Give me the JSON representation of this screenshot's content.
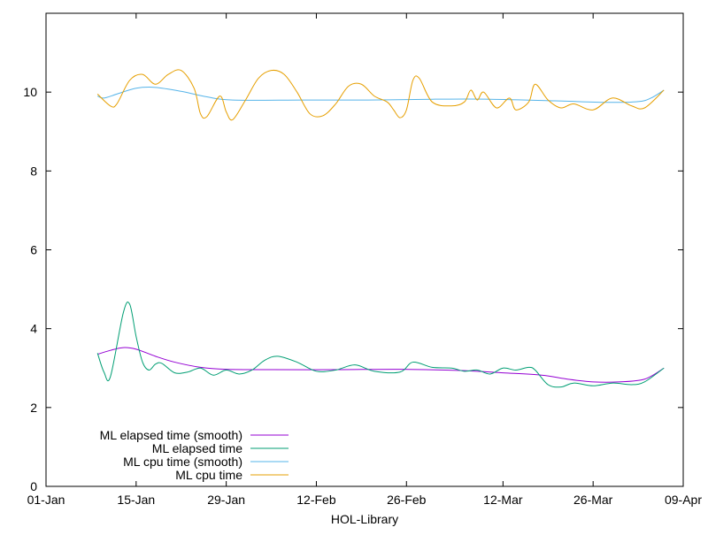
{
  "chart_data": {
    "type": "line",
    "title": "",
    "xlabel": "HOL-Library",
    "ylabel": "",
    "xlim": [
      "2024-01-01",
      "2024-04-09"
    ],
    "ylim": [
      0,
      12
    ],
    "x_ticks": [
      {
        "date": "2024-01-01",
        "label": "01-Jan"
      },
      {
        "date": "2024-01-15",
        "label": "15-Jan"
      },
      {
        "date": "2024-01-29",
        "label": "29-Jan"
      },
      {
        "date": "2024-02-12",
        "label": "12-Feb"
      },
      {
        "date": "2024-02-26",
        "label": "26-Feb"
      },
      {
        "date": "2024-03-12",
        "label": "12-Mar"
      },
      {
        "date": "2024-03-26",
        "label": "26-Mar"
      },
      {
        "date": "2024-04-09",
        "label": "09-Apr"
      }
    ],
    "y_ticks": [
      0,
      2,
      4,
      6,
      8,
      10
    ],
    "grid": false,
    "legend_position": "bottom-left",
    "series": [
      {
        "name": "ML elapsed time (smooth)",
        "color": "#9400d3",
        "points": [
          [
            "2024-01-09",
            3.35
          ],
          [
            "2024-01-11",
            3.45
          ],
          [
            "2024-01-13",
            3.52
          ],
          [
            "2024-01-15",
            3.48
          ],
          [
            "2024-01-18",
            3.3
          ],
          [
            "2024-01-21",
            3.15
          ],
          [
            "2024-01-25",
            3.02
          ],
          [
            "2024-01-29",
            2.97
          ],
          [
            "2024-02-05",
            2.96
          ],
          [
            "2024-02-15",
            2.96
          ],
          [
            "2024-02-25",
            2.97
          ],
          [
            "2024-03-05",
            2.94
          ],
          [
            "2024-03-12",
            2.88
          ],
          [
            "2024-03-18",
            2.82
          ],
          [
            "2024-03-22",
            2.72
          ],
          [
            "2024-03-26",
            2.65
          ],
          [
            "2024-03-30",
            2.65
          ],
          [
            "2024-04-03",
            2.72
          ],
          [
            "2024-04-06",
            3.0
          ]
        ]
      },
      {
        "name": "ML elapsed time",
        "color": "#009e73",
        "points": [
          [
            "2024-01-09",
            3.38
          ],
          [
            "2024-01-10",
            2.9
          ],
          [
            "2024-01-11",
            2.78
          ],
          [
            "2024-01-13",
            4.4
          ],
          [
            "2024-01-14",
            4.62
          ],
          [
            "2024-01-15",
            3.8
          ],
          [
            "2024-01-16",
            3.15
          ],
          [
            "2024-01-17",
            2.95
          ],
          [
            "2024-01-18",
            3.1
          ],
          [
            "2024-01-19",
            3.12
          ],
          [
            "2024-01-21",
            2.88
          ],
          [
            "2024-01-23",
            2.9
          ],
          [
            "2024-01-25",
            3.0
          ],
          [
            "2024-01-27",
            2.82
          ],
          [
            "2024-01-29",
            2.95
          ],
          [
            "2024-01-31",
            2.85
          ],
          [
            "2024-02-02",
            2.95
          ],
          [
            "2024-02-04",
            3.2
          ],
          [
            "2024-02-06",
            3.3
          ],
          [
            "2024-02-09",
            3.15
          ],
          [
            "2024-02-12",
            2.92
          ],
          [
            "2024-02-15",
            2.95
          ],
          [
            "2024-02-18",
            3.08
          ],
          [
            "2024-02-21",
            2.92
          ],
          [
            "2024-02-25",
            2.9
          ],
          [
            "2024-02-27",
            3.15
          ],
          [
            "2024-03-01",
            3.02
          ],
          [
            "2024-03-04",
            3.0
          ],
          [
            "2024-03-06",
            2.92
          ],
          [
            "2024-03-08",
            2.95
          ],
          [
            "2024-03-10",
            2.85
          ],
          [
            "2024-03-12",
            3.0
          ],
          [
            "2024-03-14",
            2.95
          ],
          [
            "2024-03-16",
            3.02
          ],
          [
            "2024-03-17",
            2.95
          ],
          [
            "2024-03-19",
            2.58
          ],
          [
            "2024-03-21",
            2.52
          ],
          [
            "2024-03-23",
            2.62
          ],
          [
            "2024-03-26",
            2.55
          ],
          [
            "2024-03-29",
            2.62
          ],
          [
            "2024-04-01",
            2.58
          ],
          [
            "2024-04-03",
            2.65
          ],
          [
            "2024-04-06",
            3.0
          ]
        ]
      },
      {
        "name": "ML cpu time (smooth)",
        "color": "#56b4e9",
        "points": [
          [
            "2024-01-09",
            9.9
          ],
          [
            "2024-01-10",
            9.85
          ],
          [
            "2024-01-12",
            9.95
          ],
          [
            "2024-01-15",
            10.1
          ],
          [
            "2024-01-18",
            10.12
          ],
          [
            "2024-01-22",
            10.02
          ],
          [
            "2024-01-26",
            9.88
          ],
          [
            "2024-01-30",
            9.8
          ],
          [
            "2024-02-10",
            9.8
          ],
          [
            "2024-02-20",
            9.8
          ],
          [
            "2024-03-01",
            9.82
          ],
          [
            "2024-03-10",
            9.82
          ],
          [
            "2024-03-20",
            9.78
          ],
          [
            "2024-03-28",
            9.74
          ],
          [
            "2024-04-02",
            9.76
          ],
          [
            "2024-04-04",
            9.85
          ],
          [
            "2024-04-06",
            10.05
          ]
        ]
      },
      {
        "name": "ML cpu time",
        "color": "#e69f00",
        "points": [
          [
            "2024-01-09",
            9.95
          ],
          [
            "2024-01-11",
            9.65
          ],
          [
            "2024-01-12",
            9.7
          ],
          [
            "2024-01-14",
            10.3
          ],
          [
            "2024-01-16",
            10.45
          ],
          [
            "2024-01-18",
            10.2
          ],
          [
            "2024-01-20",
            10.45
          ],
          [
            "2024-01-22",
            10.55
          ],
          [
            "2024-01-24",
            10.1
          ],
          [
            "2024-01-25",
            9.45
          ],
          [
            "2024-01-26",
            9.38
          ],
          [
            "2024-01-28",
            9.9
          ],
          [
            "2024-01-29",
            9.5
          ],
          [
            "2024-01-30",
            9.3
          ],
          [
            "2024-02-01",
            9.8
          ],
          [
            "2024-02-03",
            10.35
          ],
          [
            "2024-02-05",
            10.55
          ],
          [
            "2024-02-07",
            10.45
          ],
          [
            "2024-02-09",
            10.0
          ],
          [
            "2024-02-11",
            9.45
          ],
          [
            "2024-02-13",
            9.4
          ],
          [
            "2024-02-15",
            9.7
          ],
          [
            "2024-02-17",
            10.15
          ],
          [
            "2024-02-19",
            10.2
          ],
          [
            "2024-02-21",
            9.9
          ],
          [
            "2024-02-23",
            9.75
          ],
          [
            "2024-02-24",
            9.55
          ],
          [
            "2024-02-25",
            9.35
          ],
          [
            "2024-02-26",
            9.55
          ],
          [
            "2024-02-27",
            10.3
          ],
          [
            "2024-02-28",
            10.35
          ],
          [
            "2024-03-01",
            9.75
          ],
          [
            "2024-03-04",
            9.65
          ],
          [
            "2024-03-06",
            9.75
          ],
          [
            "2024-03-07",
            10.05
          ],
          [
            "2024-03-08",
            9.8
          ],
          [
            "2024-03-09",
            10.0
          ],
          [
            "2024-03-11",
            9.6
          ],
          [
            "2024-03-13",
            9.85
          ],
          [
            "2024-03-14",
            9.55
          ],
          [
            "2024-03-16",
            9.75
          ],
          [
            "2024-03-17",
            10.2
          ],
          [
            "2024-03-19",
            9.8
          ],
          [
            "2024-03-21",
            9.6
          ],
          [
            "2024-03-23",
            9.7
          ],
          [
            "2024-03-26",
            9.55
          ],
          [
            "2024-03-29",
            9.85
          ],
          [
            "2024-04-01",
            9.65
          ],
          [
            "2024-04-03",
            9.6
          ],
          [
            "2024-04-06",
            10.05
          ]
        ]
      }
    ]
  }
}
